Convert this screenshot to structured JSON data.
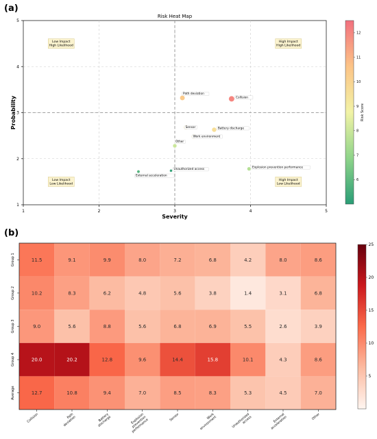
{
  "panel_a_label": "(a)",
  "panel_b_label": "(b)",
  "chart_data": [
    {
      "type": "scatter",
      "title": "Risk Heat Map",
      "xlabel": "Severity",
      "ylabel": "Probability",
      "xlim": [
        1,
        5
      ],
      "ylim": [
        1,
        5
      ],
      "x_ticks": [
        "1",
        "2",
        "3",
        "4",
        "5"
      ],
      "y_ticks": [
        "1",
        "2",
        "3",
        "4",
        "5"
      ],
      "grid": true,
      "threshold_lines": {
        "x": 3,
        "y": 3
      },
      "colorbar": {
        "label": "Risk Score",
        "min": 5,
        "max": 12.5,
        "ticks": [
          "6",
          "7",
          "8",
          "9",
          "10",
          "11",
          "12"
        ],
        "colormap": [
          "#2a9d76",
          "#8fd48a",
          "#f2f3a6",
          "#fcc487",
          "#f2707e"
        ]
      },
      "quadrants": [
        {
          "text": [
            "Low Impact",
            "High Likelihood"
          ],
          "x": 1.5,
          "y": 4.5
        },
        {
          "text": [
            "High Impact",
            "High Likelihood"
          ],
          "x": 4.5,
          "y": 4.5
        },
        {
          "text": [
            "Low Impact",
            "Low Likelihood"
          ],
          "x": 1.5,
          "y": 1.5
        },
        {
          "text": [
            "High Impact",
            "Low Likelihood"
          ],
          "x": 4.5,
          "y": 1.5
        }
      ],
      "points": [
        {
          "label": "Path deviation",
          "x": 3.1,
          "y": 3.32,
          "score": 10.4,
          "label_pos": "above"
        },
        {
          "label": "Collision",
          "x": 3.75,
          "y": 3.3,
          "score": 12.0,
          "label_pos": "right"
        },
        {
          "label": "Sensor",
          "x": 3.15,
          "y": 2.68,
          "score": 9.3,
          "label_pos": "none"
        },
        {
          "label": "Battery discharge",
          "x": 3.52,
          "y": 2.63,
          "score": 9.6,
          "label_pos": "right"
        },
        {
          "label": "Work environment",
          "x": 3.25,
          "y": 2.48,
          "score": 9.0,
          "label_pos": "none"
        },
        {
          "label": "Other",
          "x": 3.0,
          "y": 2.28,
          "score": 8.0,
          "label_pos": "above"
        },
        {
          "label": "Unauthorized access",
          "x": 2.95,
          "y": 1.74,
          "score": 5.2,
          "label_pos": "right"
        },
        {
          "label": "External acceleration",
          "x": 2.52,
          "y": 1.72,
          "score": 5.8,
          "label_pos": "below"
        },
        {
          "label": "Explosion prevention performance",
          "x": 3.98,
          "y": 1.78,
          "score": 7.6,
          "label_pos": "right"
        }
      ]
    },
    {
      "type": "heatmap",
      "columns": [
        "Collision",
        "Path deviation",
        "Battery discharge",
        "Explosion prevention performance",
        "Sensor",
        "Work environment",
        "Unauthorized access",
        "External acceleration",
        "Other"
      ],
      "rows": [
        "Group 1",
        "Group 2",
        "Group 3",
        "Group 4",
        "Average"
      ],
      "values": [
        [
          11.5,
          9.1,
          9.9,
          8.0,
          7.2,
          6.8,
          4.2,
          8.0,
          8.6
        ],
        [
          10.2,
          8.3,
          6.2,
          4.8,
          5.6,
          3.8,
          1.4,
          3.1,
          6.8
        ],
        [
          9.0,
          5.6,
          8.8,
          5.6,
          6.8,
          6.9,
          5.5,
          2.6,
          3.9
        ],
        [
          20.0,
          20.2,
          12.8,
          9.6,
          14.4,
          15.8,
          10.1,
          4.3,
          8.6
        ],
        [
          12.7,
          10.8,
          9.4,
          7.0,
          8.5,
          8.3,
          5.3,
          4.5,
          7.0
        ]
      ],
      "colorbar": {
        "min": 0,
        "max": 25,
        "ticks": [
          "5",
          "10",
          "15",
          "20",
          "25"
        ],
        "colormap": [
          "#fff5f0",
          "#fcbba1",
          "#fb6a4a",
          "#cb181d",
          "#67000d"
        ]
      }
    }
  ]
}
